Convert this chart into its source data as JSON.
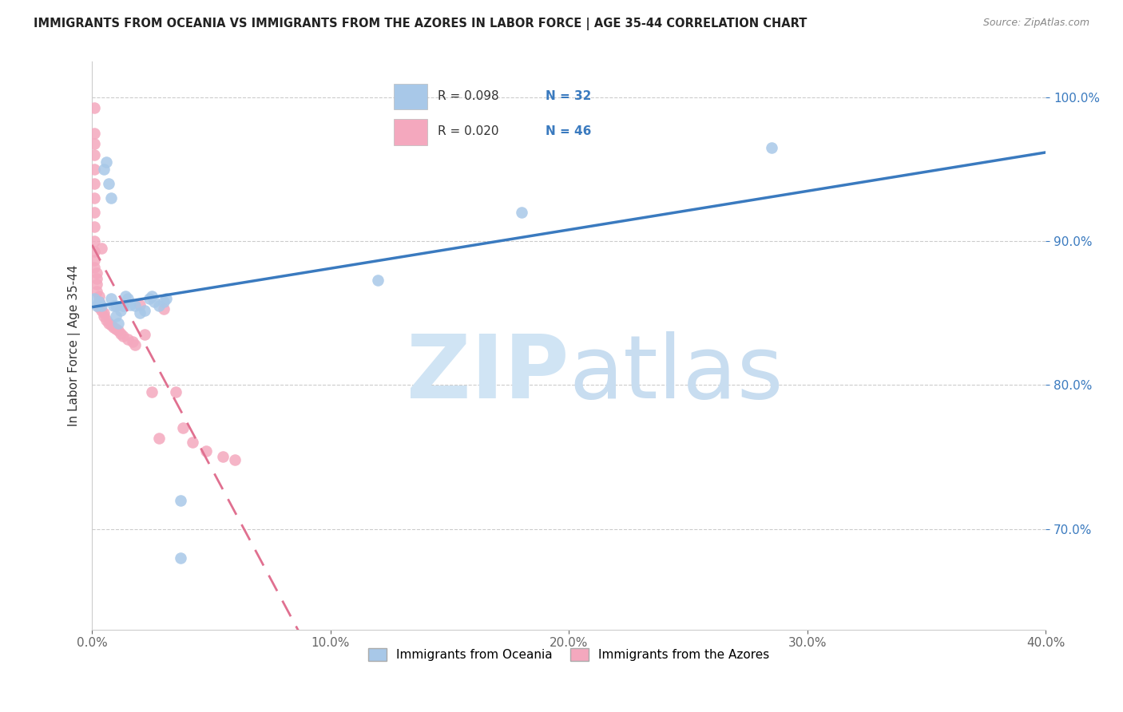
{
  "title": "IMMIGRANTS FROM OCEANIA VS IMMIGRANTS FROM THE AZORES IN LABOR FORCE | AGE 35-44 CORRELATION CHART",
  "source": "Source: ZipAtlas.com",
  "ylabel": "In Labor Force | Age 35-44",
  "xmin": 0.0,
  "xmax": 0.4,
  "ymin": 0.63,
  "ymax": 1.025,
  "yticks": [
    0.7,
    0.8,
    0.9,
    1.0
  ],
  "xticks": [
    0.0,
    0.1,
    0.2,
    0.3,
    0.4
  ],
  "legend_R_blue": "0.098",
  "legend_N_blue": "32",
  "legend_R_pink": "0.020",
  "legend_N_pink": "46",
  "blue_color": "#a8c8e8",
  "pink_color": "#f4a8be",
  "blue_line_color": "#3a7abf",
  "pink_line_color": "#e07090",
  "watermark_zip_color": "#d0e4f4",
  "watermark_atlas_color": "#c8ddf0",
  "oceania_x": [
    0.001,
    0.002,
    0.003,
    0.004,
    0.005,
    0.006,
    0.007,
    0.008,
    0.008,
    0.009,
    0.01,
    0.01,
    0.011,
    0.012,
    0.013,
    0.014,
    0.015,
    0.016,
    0.018,
    0.02,
    0.022,
    0.024,
    0.025,
    0.026,
    0.028,
    0.03,
    0.031,
    0.037,
    0.037,
    0.12,
    0.18,
    0.285
  ],
  "oceania_y": [
    0.86,
    0.855,
    0.858,
    0.855,
    0.95,
    0.955,
    0.94,
    0.93,
    0.86,
    0.855,
    0.855,
    0.848,
    0.843,
    0.852,
    0.855,
    0.862,
    0.86,
    0.856,
    0.855,
    0.85,
    0.852,
    0.86,
    0.862,
    0.858,
    0.855,
    0.858,
    0.86,
    0.72,
    0.68,
    0.873,
    0.92,
    0.965
  ],
  "azores_x": [
    0.001,
    0.001,
    0.001,
    0.001,
    0.001,
    0.001,
    0.001,
    0.001,
    0.001,
    0.001,
    0.001,
    0.001,
    0.001,
    0.002,
    0.002,
    0.002,
    0.002,
    0.003,
    0.003,
    0.003,
    0.004,
    0.004,
    0.005,
    0.005,
    0.006,
    0.007,
    0.008,
    0.009,
    0.01,
    0.011,
    0.012,
    0.013,
    0.015,
    0.017,
    0.018,
    0.02,
    0.022,
    0.025,
    0.028,
    0.03,
    0.035,
    0.038,
    0.042,
    0.048,
    0.055,
    0.06
  ],
  "azores_y": [
    0.993,
    0.975,
    0.968,
    0.96,
    0.95,
    0.94,
    0.93,
    0.92,
    0.91,
    0.9,
    0.893,
    0.887,
    0.882,
    0.878,
    0.874,
    0.87,
    0.865,
    0.862,
    0.858,
    0.854,
    0.852,
    0.895,
    0.85,
    0.848,
    0.845,
    0.843,
    0.842,
    0.84,
    0.839,
    0.838,
    0.836,
    0.834,
    0.832,
    0.83,
    0.828,
    0.856,
    0.835,
    0.795,
    0.763,
    0.853,
    0.795,
    0.77,
    0.76,
    0.754,
    0.75,
    0.748
  ]
}
